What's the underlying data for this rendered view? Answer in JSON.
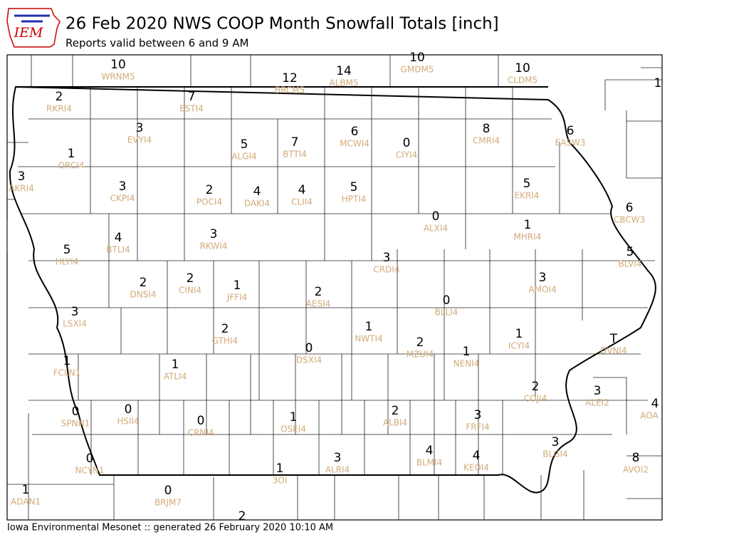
{
  "header": {
    "logo": "IEM",
    "title": "26 Feb 2020 NWS COOP Month Snowfall Totals [inch]",
    "subtitle": "Reports valid between 6 and 9 AM"
  },
  "stations": [
    {
      "value": 10,
      "id": "WRNM5"
    },
    {
      "value": 12,
      "id": "BRCM5"
    },
    {
      "value": 14,
      "id": "ALBM5"
    },
    {
      "value": 10,
      "id": "GMDM5"
    },
    {
      "value": 10,
      "id": "CLDM5"
    },
    {
      "value": 1
    },
    {
      "value": 2,
      "id": "RKRI4"
    },
    {
      "value": 7,
      "id": "ESTI4"
    },
    {
      "value": 3,
      "id": "EVYI4"
    },
    {
      "value": 1,
      "id": "ORCI4"
    },
    {
      "value": 5,
      "id": "ALGI4"
    },
    {
      "value": 7,
      "id": "BTTI4"
    },
    {
      "value": 6,
      "id": "MCWI4"
    },
    {
      "value": 0,
      "id": "CIYI4"
    },
    {
      "value": 8,
      "id": "CMRI4"
    },
    {
      "value": 6,
      "id": "EASW3"
    },
    {
      "value": 3,
      "id": "AKRI4"
    },
    {
      "value": 3,
      "id": "CKPI4"
    },
    {
      "value": 2,
      "id": "POCI4"
    },
    {
      "value": 4,
      "id": "DAKI4"
    },
    {
      "value": 4,
      "id": "CLII4"
    },
    {
      "value": 5,
      "id": "HPTI4"
    },
    {
      "value": 5,
      "id": "EKRI4"
    },
    {
      "value": 6,
      "id": "CBCW3"
    },
    {
      "value": 0,
      "id": "ALXI4"
    },
    {
      "value": 1,
      "id": "MHRI4"
    },
    {
      "value": 4,
      "id": "BTLI4"
    },
    {
      "value": 3,
      "id": "RKWI4"
    },
    {
      "value": 5,
      "id": "HLYI4"
    },
    {
      "value": 5,
      "id": "BLVI4"
    },
    {
      "value": 3,
      "id": "CRDI4"
    },
    {
      "value": 3,
      "id": "AMOI4"
    },
    {
      "value": 2,
      "id": "DNSI4"
    },
    {
      "value": 2,
      "id": "CINI4"
    },
    {
      "value": 1,
      "id": "JFFI4"
    },
    {
      "value": 2,
      "id": "AESI4"
    },
    {
      "value": 0,
      "id": "BLLI4"
    },
    {
      "value": 3,
      "id": "LSXI4"
    },
    {
      "value": 2,
      "id": "GTHI4"
    },
    {
      "value": 1,
      "id": "NWTI4"
    },
    {
      "value": 1,
      "id": "ICYI4"
    },
    {
      "value": "T",
      "id": "DVNI4"
    },
    {
      "value": 2,
      "id": "MZUI4"
    },
    {
      "value": 0,
      "id": "DSXI4"
    },
    {
      "value": 1,
      "id": "NENI4"
    },
    {
      "value": 1,
      "id": "FCLN1"
    },
    {
      "value": 1,
      "id": "ATLI4"
    },
    {
      "value": 2,
      "id": "COJI4"
    },
    {
      "value": 3,
      "id": "ALEI2"
    },
    {
      "value": 4,
      "id": "AOA"
    },
    {
      "value": 0,
      "id": "SPNN1"
    },
    {
      "value": 0,
      "id": "HSII4"
    },
    {
      "value": 0,
      "id": "CRNI4"
    },
    {
      "value": 1,
      "id": "OSEI4"
    },
    {
      "value": 2,
      "id": "ALBI4"
    },
    {
      "value": 3,
      "id": "FRFI4"
    },
    {
      "value": 3,
      "id": "BLGI4"
    },
    {
      "value": 4,
      "id": "BLMI4"
    },
    {
      "value": 4,
      "id": "KEOI4"
    },
    {
      "value": 3,
      "id": "ALRI4"
    },
    {
      "value": 8,
      "id": "AVOI2"
    },
    {
      "value": 0,
      "id": "NCYN1"
    },
    {
      "value": 1,
      "id": "3OI"
    },
    {
      "value": 1,
      "id": "ADAN1"
    },
    {
      "value": 0,
      "id": "BRJM7"
    },
    {
      "value": 2
    }
  ],
  "footer": "Iowa Environmental Mesonet :: generated 26 February 2020 10:10 AM"
}
